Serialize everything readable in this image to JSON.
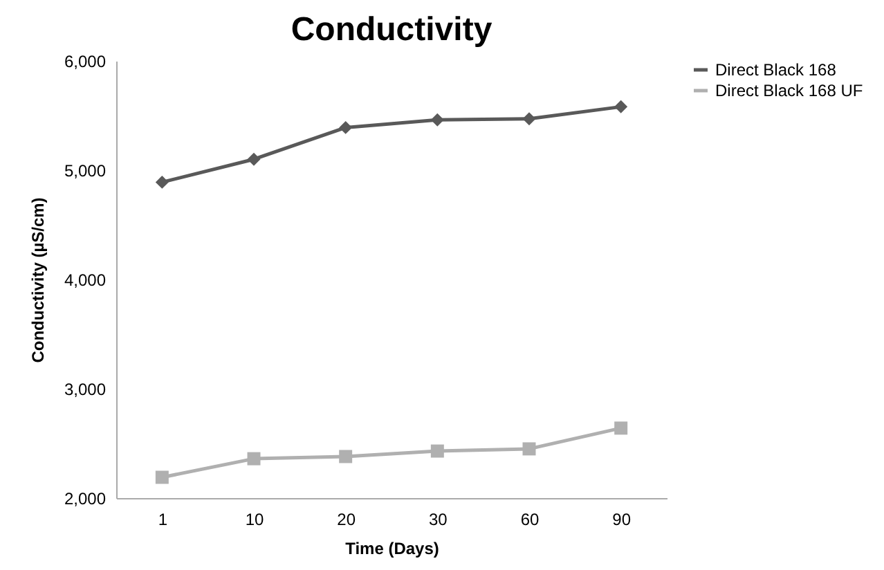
{
  "chart_data": {
    "type": "line",
    "title": "Conductivity",
    "xlabel": "Time (Days)",
    "ylabel": "Conductivity (µS/cm)",
    "categories": [
      "1",
      "10",
      "20",
      "30",
      "60",
      "90"
    ],
    "series": [
      {
        "name": "Direct Black 168",
        "color": "#595959",
        "marker": "diamond",
        "values": [
          4890,
          5100,
          5390,
          5460,
          5470,
          5580
        ]
      },
      {
        "name": "Direct Black 168 UF",
        "color": "#b0b0b0",
        "marker": "square",
        "values": [
          2190,
          2360,
          2380,
          2430,
          2450,
          2640
        ]
      }
    ],
    "ylim": [
      2000,
      6000
    ],
    "yticks": [
      {
        "value": 2000,
        "label": "2,000"
      },
      {
        "value": 3000,
        "label": "3,000"
      },
      {
        "value": 4000,
        "label": "4,000"
      },
      {
        "value": 5000,
        "label": "5,000"
      },
      {
        "value": 6000,
        "label": "6,000"
      }
    ],
    "grid": false,
    "legend": "right",
    "line_style": "solid"
  }
}
